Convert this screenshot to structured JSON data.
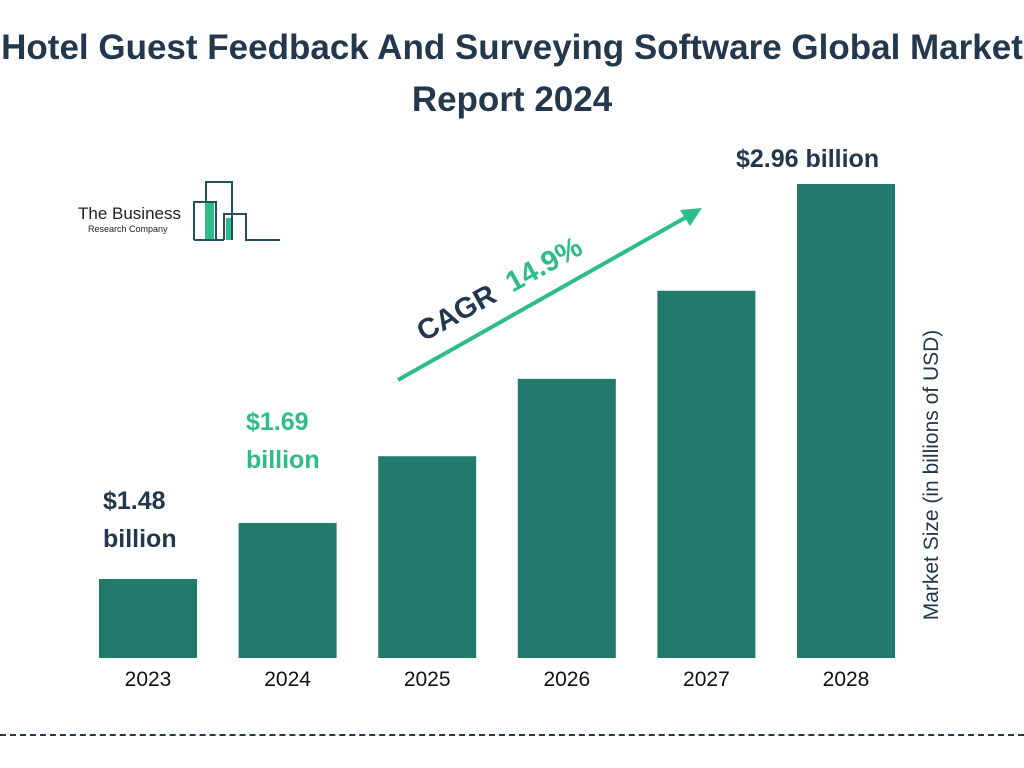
{
  "title": "Hotel Guest Feedback And Surveying Software Global Market Report 2024",
  "logo": {
    "line1": "The Business",
    "line2": "Research Company"
  },
  "colors": {
    "bar": "#217a6b",
    "accent": "#2ebd86",
    "text": "#23374d"
  },
  "chart_data": {
    "type": "bar",
    "title": "Hotel Guest Feedback And Surveying Software Global Market Report 2024",
    "categories": [
      "2023",
      "2024",
      "2025",
      "2026",
      "2027",
      "2028"
    ],
    "values": [
      1.48,
      1.69,
      1.94,
      2.23,
      2.56,
      2.96
    ],
    "ylabel": "Market Size (in billions of USD)",
    "data_labels": {
      "2023": "$1.48 billion",
      "2024": "$1.69 billion",
      "2028": "$2.96 billion"
    },
    "annotation": {
      "label": "CAGR",
      "value": "14.9%"
    },
    "grid": false
  }
}
